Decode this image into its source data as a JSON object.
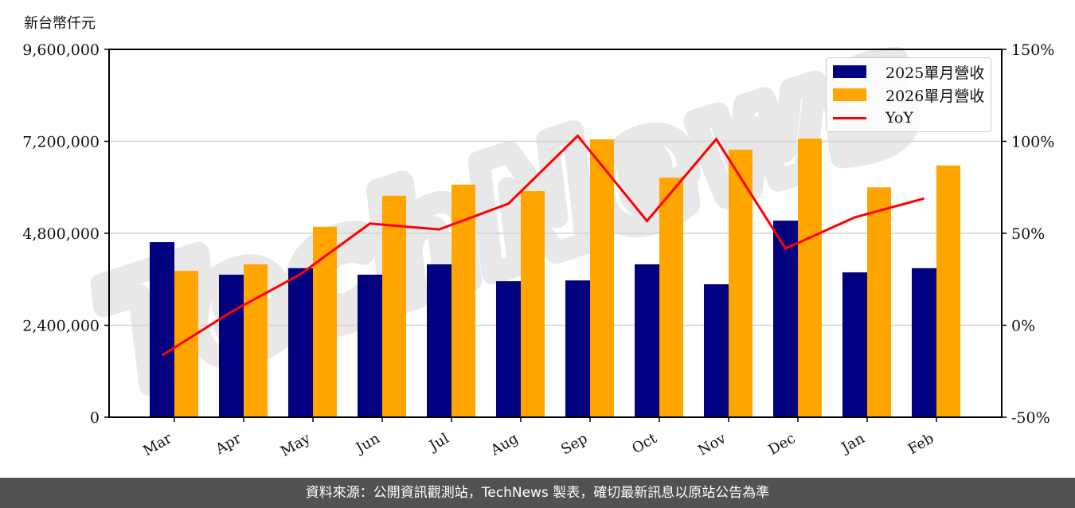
{
  "unit_label": "新台幣仟元",
  "footer": {
    "text": "資料來源：公開資訊觀測站，TechNews 製表，確切最新訊息以原站公告為準"
  },
  "watermark": {
    "text": "TechNews"
  },
  "legend": {
    "items": [
      {
        "label": "2025單月營收",
        "color": "#000080",
        "kind": "bar"
      },
      {
        "label": "2026單月營收",
        "color": "#FFA500",
        "kind": "bar"
      },
      {
        "label": "YoY",
        "color": "#FF0000",
        "kind": "line"
      }
    ]
  },
  "colors": {
    "series_2025": "#000080",
    "series_2026": "#FFA500",
    "yoy": "#FF0000",
    "grid": "#d3d3d3",
    "footer_bg": "#525252"
  },
  "chart_data": {
    "type": "bar",
    "title": "",
    "xlabel": "",
    "ylabel": "新台幣仟元",
    "y2label": "",
    "categories": [
      "Mar",
      "Apr",
      "May",
      "Jun",
      "Jul",
      "Aug",
      "Sep",
      "Oct",
      "Nov",
      "Dec",
      "Jan",
      "Feb"
    ],
    "series": [
      {
        "name": "2025單月營收",
        "type": "bar",
        "axis": "left",
        "values": [
          4570000,
          3720000,
          3890000,
          3720000,
          3990000,
          3550000,
          3570000,
          3990000,
          3470000,
          5130000,
          3780000,
          3890000
        ]
      },
      {
        "name": "2026單月營收",
        "type": "bar",
        "axis": "left",
        "values": [
          3820000,
          3990000,
          4970000,
          5780000,
          6070000,
          5900000,
          7250000,
          6250000,
          6980000,
          7270000,
          6000000,
          6570000
        ]
      },
      {
        "name": "YoY",
        "type": "line",
        "axis": "right",
        "unit": "%",
        "values": [
          -16.4,
          7.3,
          27.8,
          55.3,
          52.1,
          66.1,
          103.0,
          56.7,
          101.2,
          41.7,
          58.7,
          68.9
        ]
      }
    ],
    "ylim": [
      0,
      9600000
    ],
    "yticks": [
      0,
      2400000,
      4800000,
      7200000,
      9600000
    ],
    "ytick_labels": [
      "0",
      "2,400,000",
      "4,800,000",
      "7,200,000",
      "9,600,000"
    ],
    "y2lim": [
      -50,
      150
    ],
    "y2ticks": [
      -50,
      0,
      50,
      100,
      150
    ],
    "y2tick_labels": [
      "-50%",
      "0%",
      "50%",
      "100%",
      "150%"
    ],
    "grid": true,
    "legend_position": "upper right",
    "xtick_rotation": 30
  }
}
